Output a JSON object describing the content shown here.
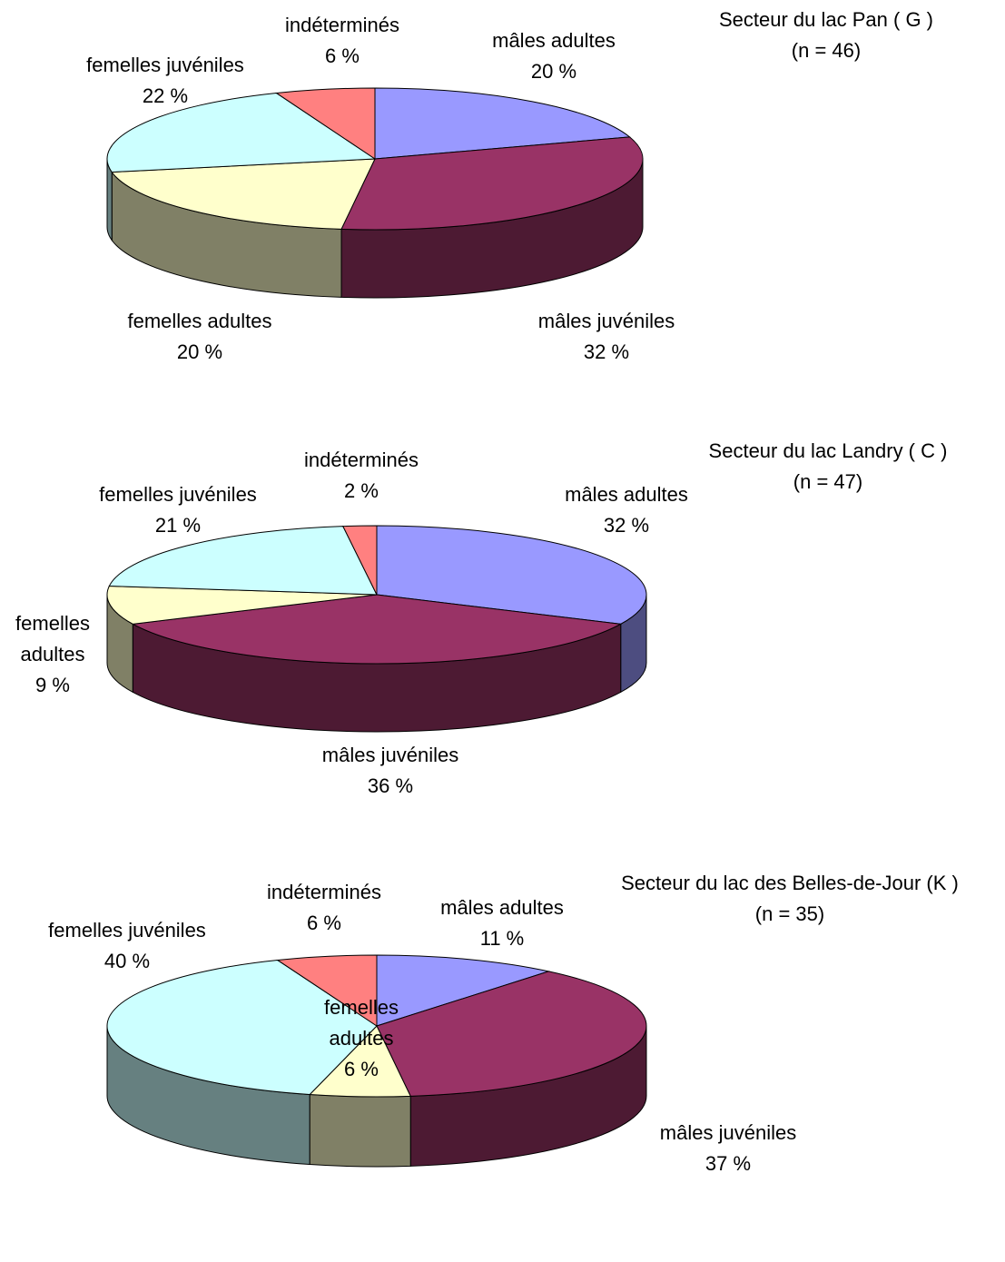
{
  "chart_data": [
    {
      "type": "pie",
      "title": "Secteur du lac Pan ( G )",
      "subtitle": "(n = 46)",
      "categories": [
        "mâles adultes",
        "mâles juvéniles",
        "femelles adultes",
        "femelles juvéniles",
        "indéterminés"
      ],
      "values": [
        20,
        32,
        20,
        22,
        6
      ],
      "value_labels": [
        "20 %",
        "32 %",
        "20 %",
        "22 %",
        "6 %"
      ],
      "colors": [
        "#9999ff",
        "#993366",
        "#ffffcc",
        "#ccffff",
        "#ff8080"
      ]
    },
    {
      "type": "pie",
      "title": "Secteur du lac Landry ( C )",
      "subtitle": "(n = 47)",
      "categories": [
        "mâles adultes",
        "mâles juvéniles",
        "femelles adultes",
        "femelles juvéniles",
        "indéterminés"
      ],
      "values": [
        32,
        36,
        9,
        21,
        2
      ],
      "value_labels": [
        "32 %",
        "36 %",
        "9 %",
        "21 %",
        "2 %"
      ],
      "colors": [
        "#9999ff",
        "#993366",
        "#ffffcc",
        "#ccffff",
        "#ff8080"
      ]
    },
    {
      "type": "pie",
      "title": "Secteur du lac des Belles-de-Jour (K )",
      "subtitle": "(n = 35)",
      "categories": [
        "mâles adultes",
        "mâles juvéniles",
        "femelles adultes",
        "femelles juvéniles",
        "indéterminés"
      ],
      "values": [
        11,
        37,
        6,
        40,
        6
      ],
      "value_labels": [
        "11 %",
        "37 %",
        "6 %",
        "40 %",
        "6 %"
      ],
      "colors": [
        "#9999ff",
        "#993366",
        "#ffffcc",
        "#ccffff",
        "#ff8080"
      ]
    }
  ]
}
